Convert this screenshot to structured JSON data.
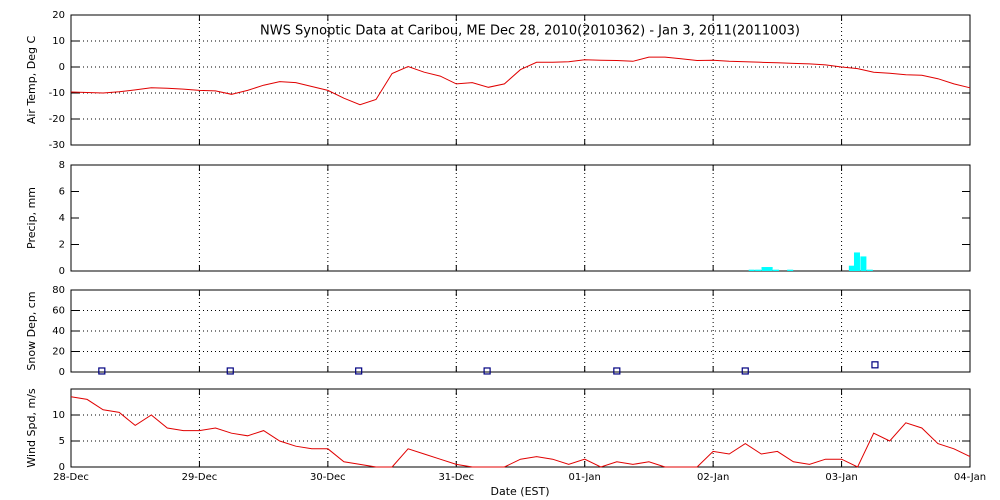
{
  "chart_data": [
    {
      "type": "line",
      "title": "NWS Synoptic Data at Caribou, ME   Dec 28, 2010(2010362) - Jan  3, 2011(2011003)",
      "y_label": "Air Temp, Deg C",
      "xlim": [
        0,
        7
      ],
      "xticks": [
        0,
        1,
        2,
        3,
        4,
        5,
        6,
        7
      ],
      "ylim": [
        -30,
        20
      ],
      "yticks": [
        -30,
        -20,
        -10,
        0,
        10,
        20
      ],
      "grid": "both",
      "series": [
        {
          "color": "#e00000",
          "x": [
            0,
            0.125,
            0.25,
            0.375,
            0.5,
            0.625,
            0.75,
            0.875,
            1,
            1.125,
            1.25,
            1.375,
            1.5,
            1.625,
            1.75,
            1.875,
            2,
            2.125,
            2.25,
            2.375,
            2.5,
            2.625,
            2.75,
            2.875,
            3,
            3.125,
            3.25,
            3.375,
            3.5,
            3.625,
            3.75,
            3.875,
            4,
            4.125,
            4.25,
            4.375,
            4.5,
            4.625,
            4.75,
            4.875,
            5,
            5.125,
            5.25,
            5.375,
            5.5,
            5.625,
            5.75,
            5.875,
            6,
            6.125,
            6.25,
            6.375,
            6.5,
            6.625,
            6.75,
            6.875,
            7
          ],
          "values": [
            -9.6,
            -9.8,
            -10.0,
            -9.5,
            -8.8,
            -8.0,
            -8.2,
            -8.5,
            -9.0,
            -9.2,
            -10.5,
            -9.0,
            -7.0,
            -5.6,
            -6.0,
            -7.5,
            -9.0,
            -12.0,
            -14.5,
            -12.5,
            -2.5,
            0.2,
            -2.0,
            -3.5,
            -6.5,
            -6.0,
            -7.8,
            -6.5,
            -1.0,
            1.8,
            1.8,
            2.0,
            2.8,
            2.6,
            2.5,
            2.2,
            3.8,
            3.8,
            3.2,
            2.5,
            2.6,
            2.2,
            2.0,
            1.8,
            1.6,
            1.4,
            1.2,
            0.8,
            0.0,
            -0.6,
            -2.0,
            -2.4,
            -3.0,
            -3.2,
            -4.5,
            -6.5,
            -8.0
          ]
        }
      ]
    },
    {
      "type": "bar",
      "y_label": "Precip, mm",
      "xlim": [
        0,
        7
      ],
      "xticks": [
        0,
        1,
        2,
        3,
        4,
        5,
        6,
        7
      ],
      "ylim": [
        0,
        8
      ],
      "yticks": [
        0,
        2,
        4,
        6,
        8
      ],
      "grid": "x",
      "series": [
        {
          "color": "#00ffff",
          "x": [
            5.3,
            5.35,
            5.4,
            5.44,
            5.49,
            5.6,
            6.08,
            6.12,
            6.17,
            6.22
          ],
          "values": [
            0.1,
            0.1,
            0.3,
            0.3,
            0.1,
            0.1,
            0.4,
            1.4,
            1.1,
            0.1
          ]
        }
      ]
    },
    {
      "type": "scatter",
      "y_label": "Snow Dep, cm",
      "xlim": [
        0,
        7
      ],
      "xticks": [
        0,
        1,
        2,
        3,
        4,
        5,
        6,
        7
      ],
      "ylim": [
        0,
        80
      ],
      "yticks": [
        0,
        20,
        40,
        60,
        80
      ],
      "grid": "both",
      "series": [
        {
          "color": "#000080",
          "x": [
            0.24,
            1.24,
            2.24,
            3.24,
            4.25,
            5.25,
            6.26
          ],
          "values": [
            1,
            1,
            1,
            1,
            1,
            1,
            7
          ]
        }
      ]
    },
    {
      "type": "line",
      "y_label": "Wind Spd, m/s",
      "x_label": "Date (EST)",
      "xlim": [
        0,
        7
      ],
      "xticks": [
        {
          "value": 0,
          "label": "28-Dec"
        },
        {
          "value": 1,
          "label": "29-Dec"
        },
        {
          "value": 2,
          "label": "30-Dec"
        },
        {
          "value": 3,
          "label": "31-Dec"
        },
        {
          "value": 4,
          "label": "01-Jan"
        },
        {
          "value": 5,
          "label": "02-Jan"
        },
        {
          "value": 6,
          "label": "03-Jan"
        },
        {
          "value": 7,
          "label": "04-Jan"
        }
      ],
      "ylim": [
        0,
        15
      ],
      "yticks": [
        0,
        5,
        10
      ],
      "grid": "both",
      "series": [
        {
          "color": "#e00000",
          "x": [
            0,
            0.125,
            0.25,
            0.375,
            0.5,
            0.625,
            0.75,
            0.875,
            1,
            1.125,
            1.25,
            1.375,
            1.5,
            1.625,
            1.75,
            1.875,
            2,
            2.125,
            2.25,
            2.375,
            2.5,
            2.625,
            2.75,
            2.875,
            3,
            3.125,
            3.25,
            3.375,
            3.5,
            3.625,
            3.75,
            3.875,
            4,
            4.125,
            4.25,
            4.375,
            4.5,
            4.625,
            4.75,
            4.875,
            5,
            5.125,
            5.25,
            5.375,
            5.5,
            5.625,
            5.75,
            5.875,
            6,
            6.125,
            6.25,
            6.375,
            6.5,
            6.625,
            6.75,
            6.875,
            7
          ],
          "values": [
            13.5,
            13,
            11,
            10.5,
            8,
            10,
            7.5,
            7,
            7,
            7.5,
            6.5,
            6,
            7,
            5,
            4,
            3.5,
            3.5,
            1,
            0.5,
            0,
            0,
            3.5,
            2.5,
            1.5,
            0.5,
            0,
            0,
            0,
            1.5,
            2,
            1.5,
            0.5,
            1.5,
            0,
            1,
            0.5,
            1,
            0,
            0,
            0,
            3,
            2.5,
            4.5,
            2.5,
            3,
            1,
            0.5,
            1.5,
            1.5,
            0,
            6.5,
            5,
            8.5,
            7.5,
            4.5,
            3.5,
            2
          ]
        }
      ]
    }
  ]
}
